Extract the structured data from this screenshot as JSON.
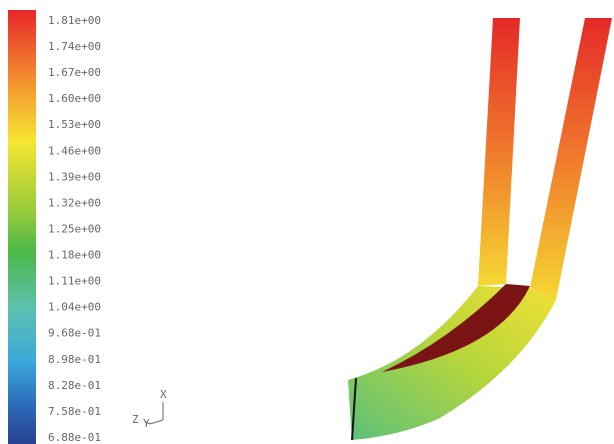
{
  "colorbar": {
    "labels": [
      "1.81e+00",
      "1.74e+00",
      "1.67e+00",
      "1.60e+00",
      "1.53e+00",
      "1.46e+00",
      "1.39e+00",
      "1.32e+00",
      "1.25e+00",
      "1.18e+00",
      "1.11e+00",
      "1.04e+00",
      "9.68e-01",
      "8.98e-01",
      "8.28e-01",
      "7.58e-01",
      "6.88e-01"
    ]
  },
  "axes": {
    "x": "X",
    "y": "Y",
    "z": "Z"
  }
}
